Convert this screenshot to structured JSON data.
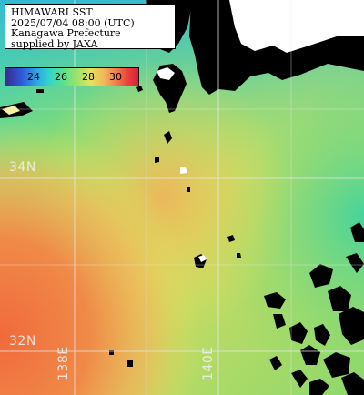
{
  "header": {
    "line1": "HIMAWARI SST",
    "line2": "2025/07/04 08:00 (UTC)",
    "line3": "Kanagawa Prefecture",
    "line4": "supplied by JAXA"
  },
  "colorbar": {
    "ticks": [
      "24",
      "26",
      "28",
      "30"
    ],
    "colors": [
      "#3a2a8e",
      "#2f58d6",
      "#2fa8e8",
      "#35d8c4",
      "#5ee08a",
      "#9fe36a",
      "#e3e25e",
      "#f2b85a",
      "#f07a48",
      "#e83c3a",
      "#d9203a"
    ]
  },
  "grid_labels": {
    "lat_34": "34N",
    "lat_32": "32N",
    "lon_138": "138E",
    "lon_140": "140E"
  },
  "colors": {
    "land": "#000000",
    "grid": "#e8e8e8",
    "missing": "#ffffff"
  }
}
